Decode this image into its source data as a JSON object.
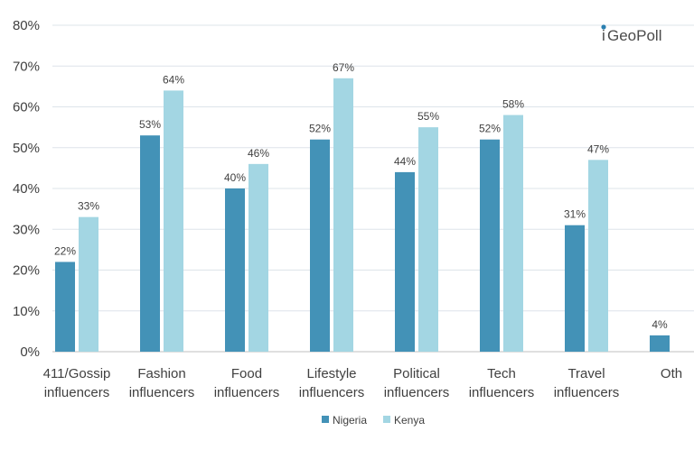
{
  "chart_data": {
    "type": "bar",
    "categories": [
      [
        "411/Gossip",
        "influencers"
      ],
      [
        "Fashion",
        "influencers"
      ],
      [
        "Food",
        "influencers"
      ],
      [
        "Lifestyle",
        "influencers"
      ],
      [
        "Political",
        "influencers"
      ],
      [
        "Tech",
        "influencers"
      ],
      [
        "Travel",
        "influencers"
      ],
      [
        "Oth",
        ""
      ]
    ],
    "series": [
      {
        "name": "Nigeria",
        "color": "#4392b7",
        "values": [
          22,
          53,
          40,
          52,
          44,
          52,
          31,
          4
        ],
        "labels": [
          "22%",
          "53%",
          "40%",
          "52%",
          "44%",
          "52%",
          "31%",
          "4%"
        ]
      },
      {
        "name": "Kenya",
        "color": "#a3d6e3",
        "values": [
          33,
          64,
          46,
          67,
          55,
          58,
          47,
          null
        ],
        "labels": [
          "33%",
          "64%",
          "46%",
          "67%",
          "55%",
          "58%",
          "47%",
          ""
        ]
      }
    ],
    "ylim": [
      0,
      80
    ],
    "yticks": [
      0,
      10,
      20,
      30,
      40,
      50,
      60,
      70,
      80
    ],
    "ytick_labels": [
      "0%",
      "10%",
      "20%",
      "30%",
      "40%",
      "50%",
      "60%",
      "70%",
      "80%"
    ],
    "grid": true,
    "legend": "bottom",
    "title": "",
    "xlabel": "",
    "ylabel": ""
  },
  "logo": {
    "text": "GeoPoll",
    "prefix_glyph": "i"
  }
}
